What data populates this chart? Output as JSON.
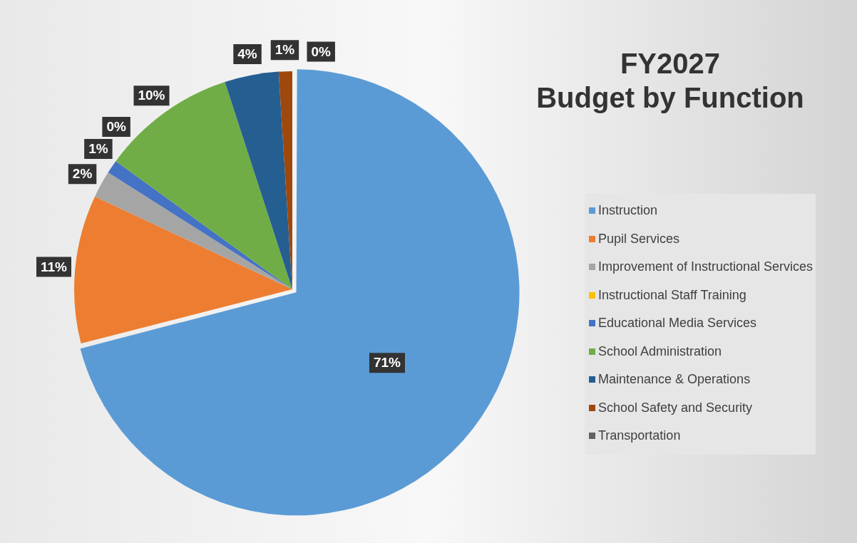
{
  "chart_data": {
    "type": "pie",
    "title": "FY2027\nBudget by Function",
    "categories": [
      "Instruction",
      "Pupil Services",
      "Improvement of Instructional Services",
      "Instructional Staff Training",
      "Educational Media Services",
      "School Administration",
      "Maintenance & Operations",
      "School Safety and Security",
      "Transportation"
    ],
    "values": [
      71,
      11,
      2,
      0,
      1,
      10,
      4,
      1,
      0
    ],
    "colors": [
      "#5b9bd5",
      "#ed7d31",
      "#a5a5a5",
      "#ffc000",
      "#4472c4",
      "#70ad47",
      "#255e91",
      "#9e480e",
      "#636363"
    ],
    "value_labels": [
      "71%",
      "11%",
      "2%",
      "0%",
      "1%",
      "10%",
      "4%",
      "1%",
      "0%"
    ],
    "legend": "right"
  }
}
